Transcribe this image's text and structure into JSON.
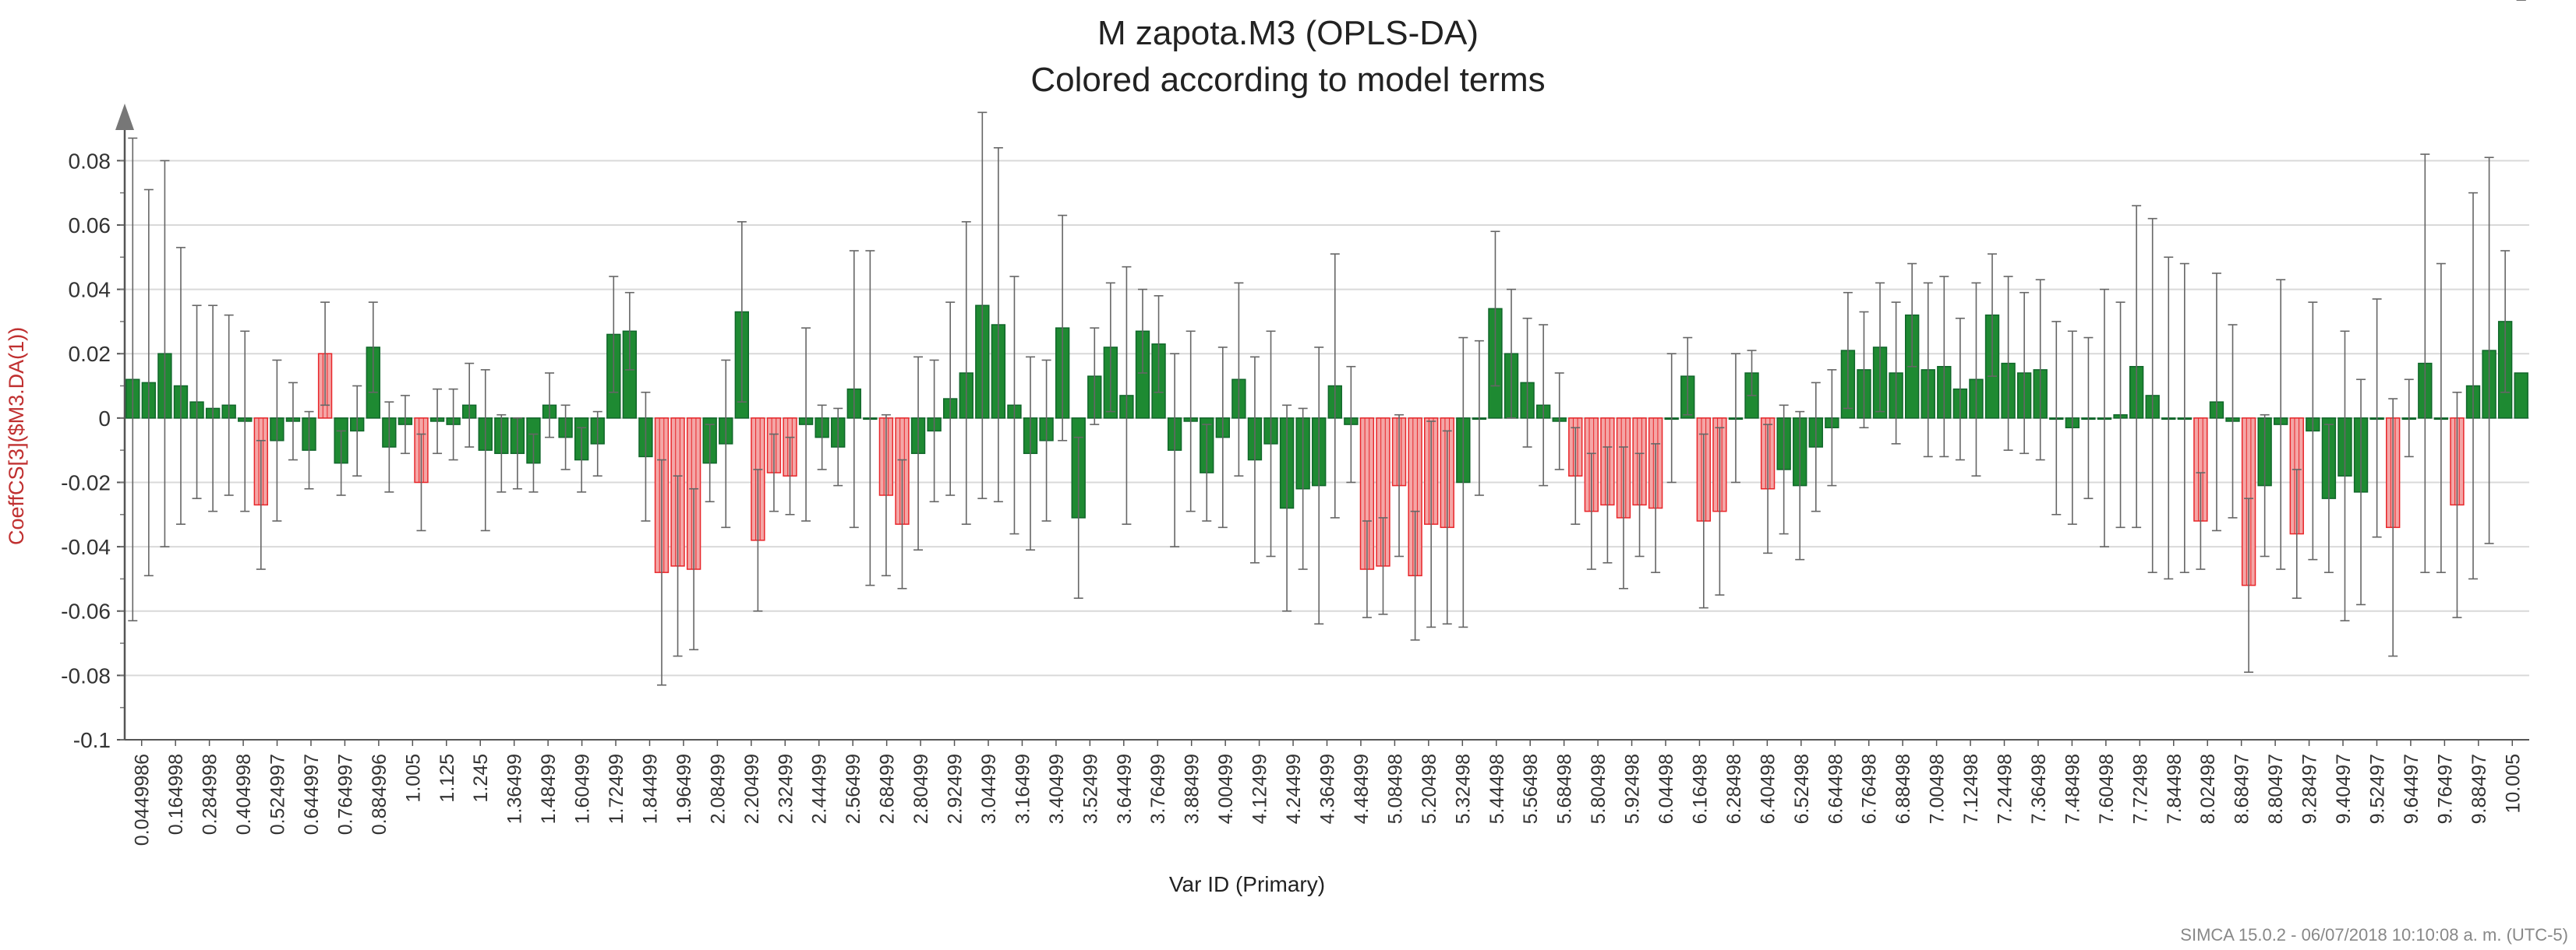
{
  "chart_data": {
    "type": "bar",
    "title": "M zapota.M3 (OPLS-DA)",
    "subtitle": "Colored according to model terms",
    "xlabel": "Var ID (Primary)",
    "ylabel": "CoeffCS[3]($M3.DA(1))",
    "ylim": [
      -0.1,
      0.09
    ],
    "yticks": [
      -0.1,
      -0.08,
      -0.06,
      -0.04,
      -0.02,
      0,
      0.02,
      0.04,
      0.06,
      0.08
    ],
    "ytick_labels": [
      "-0.1",
      "-0.08",
      "-0.06",
      "-0.04",
      "-0.02",
      "0",
      "0.02",
      "0.04",
      "0.06",
      "0.08"
    ],
    "tick_labels": [
      "0.0449986",
      "0.164998",
      "0.284998",
      "0.404998",
      "0.524997",
      "0.644997",
      "0.764997",
      "0.884996",
      "1.005",
      "1.125",
      "1.245",
      "1.36499",
      "1.48499",
      "1.60499",
      "1.72499",
      "1.84499",
      "1.96499",
      "2.08499",
      "2.20499",
      "2.32499",
      "2.44499",
      "2.56499",
      "2.68499",
      "2.80499",
      "2.92499",
      "3.04499",
      "3.16499",
      "3.40499",
      "3.52499",
      "3.64499",
      "3.76499",
      "3.88499",
      "4.00499",
      "4.12499",
      "4.24499",
      "4.36499",
      "4.48499",
      "5.08498",
      "5.20498",
      "5.32498",
      "5.44498",
      "5.56498",
      "5.68498",
      "5.80498",
      "5.92498",
      "6.04498",
      "6.16498",
      "6.28498",
      "6.40498",
      "6.52498",
      "6.64498",
      "6.76498",
      "6.88498",
      "7.00498",
      "7.12498",
      "7.24498",
      "7.36498",
      "7.48498",
      "7.60498",
      "7.72498",
      "7.84498",
      "8.02498",
      "8.68497",
      "8.80497",
      "9.28497",
      "9.40497",
      "9.52497",
      "9.64497",
      "9.76497",
      "9.88497",
      "10.005"
    ],
    "colors": {
      "positive_significant": "#1e8a32",
      "negative_significant": "#e8262a",
      "error_bar": "#666666",
      "grid": "#d9d9d9"
    },
    "series": [
      {
        "name": "CoeffCS[3]($M3.DA(1))",
        "values": [
          0.012,
          0.011,
          0.02,
          0.01,
          0.005,
          0.003,
          0.004,
          -0.001,
          -0.027,
          -0.007,
          -0.001,
          -0.01,
          0.02,
          -0.014,
          -0.004,
          0.022,
          -0.009,
          -0.002,
          -0.02,
          -0.001,
          -0.002,
          0.004,
          -0.01,
          -0.011,
          -0.011,
          -0.014,
          0.004,
          -0.006,
          -0.013,
          -0.008,
          0.026,
          0.027,
          -0.012,
          -0.048,
          -0.046,
          -0.047,
          -0.014,
          -0.008,
          0.033,
          -0.038,
          -0.017,
          -0.018,
          -0.002,
          -0.006,
          -0.009,
          0.009,
          0.0,
          -0.024,
          -0.033,
          -0.011,
          -0.004,
          0.006,
          0.014,
          0.035,
          0.029,
          0.004,
          -0.011,
          -0.007,
          0.028,
          -0.031,
          0.013,
          0.022,
          0.007,
          0.027,
          0.023,
          -0.01,
          -0.001,
          -0.017,
          -0.006,
          0.012,
          -0.013,
          -0.008,
          -0.028,
          -0.022,
          -0.021,
          0.01,
          -0.002,
          -0.047,
          -0.046,
          -0.021,
          -0.049,
          -0.033,
          -0.034,
          -0.02,
          0.0,
          0.034,
          0.02,
          0.011,
          0.004,
          -0.001,
          -0.018,
          -0.029,
          -0.027,
          -0.031,
          -0.027,
          -0.028,
          0.0,
          0.013,
          -0.032,
          -0.029,
          0.0,
          0.014,
          -0.022,
          -0.016,
          -0.021,
          -0.009,
          -0.003,
          0.021,
          0.015,
          0.022,
          0.014,
          0.032,
          0.015,
          0.016,
          0.009,
          0.012,
          0.032,
          0.017,
          0.014,
          0.015,
          0.0,
          -0.003,
          0.0,
          0.0,
          0.001,
          0.016,
          0.007,
          0.0,
          0.0,
          -0.032,
          0.005,
          -0.001,
          -0.052,
          -0.021,
          -0.002,
          -0.036,
          -0.004,
          -0.025,
          -0.018,
          -0.023,
          0.0,
          -0.034,
          0.0,
          0.017,
          0.0,
          -0.027,
          0.01,
          0.021,
          0.03,
          0.014
        ],
        "significant_negative_indices": [
          8,
          12,
          18,
          33,
          34,
          35,
          39,
          40,
          41,
          47,
          48,
          77,
          78,
          79,
          80,
          81,
          82,
          90,
          91,
          92,
          93,
          94,
          95,
          98,
          99,
          102,
          129,
          132,
          135,
          141,
          145
        ],
        "error_bar_half_widths": [
          0.075,
          0.06,
          0.06,
          0.043,
          0.03,
          0.032,
          0.028,
          0.028,
          0.02,
          0.025,
          0.012,
          0.012,
          0.016,
          0.01,
          0.014,
          0.014,
          0.014,
          0.009,
          0.015,
          0.01,
          0.011,
          0.013,
          0.025,
          0.012,
          0.011,
          0.009,
          0.01,
          0.01,
          0.01,
          0.01,
          0.018,
          0.012,
          0.02,
          0.035,
          0.028,
          0.025,
          0.012,
          0.026,
          0.028,
          0.022,
          0.012,
          0.012,
          0.03,
          0.01,
          0.012,
          0.043,
          0.052,
          0.025,
          0.02,
          0.03,
          0.022,
          0.03,
          0.047,
          0.06,
          0.055,
          0.04,
          0.03,
          0.025,
          0.035,
          0.025,
          0.015,
          0.02,
          0.04,
          0.013,
          0.015,
          0.03,
          0.028,
          0.015,
          0.028,
          0.03,
          0.032,
          0.035,
          0.032,
          0.025,
          0.043,
          0.041,
          0.018,
          0.015,
          0.015,
          0.022,
          0.02,
          0.032,
          0.03,
          0.045,
          0.024,
          0.024,
          0.02,
          0.02,
          0.025,
          0.015,
          0.015,
          0.018,
          0.018,
          0.022,
          0.016,
          0.02,
          0.02,
          0.012,
          0.027,
          0.026,
          0.02,
          0.007,
          0.02,
          0.02,
          0.023,
          0.02,
          0.018,
          0.018,
          0.018,
          0.02,
          0.022,
          0.016,
          0.027,
          0.028,
          0.022,
          0.03,
          0.019,
          0.027,
          0.025,
          0.028,
          0.03,
          0.03,
          0.025,
          0.04,
          0.035,
          0.05,
          0.055,
          0.05,
          0.048,
          0.015,
          0.04,
          0.03,
          0.027,
          0.022,
          0.045,
          0.02,
          0.04,
          0.023,
          0.045,
          0.035,
          0.037,
          0.04,
          0.012,
          0.065,
          0.048,
          0.035,
          0.06,
          0.06,
          0.022
        ]
      }
    ]
  },
  "footer": "SIMCA 15.0.2 - 06/07/2018 10:10:08 a. m. (UTC-5)"
}
